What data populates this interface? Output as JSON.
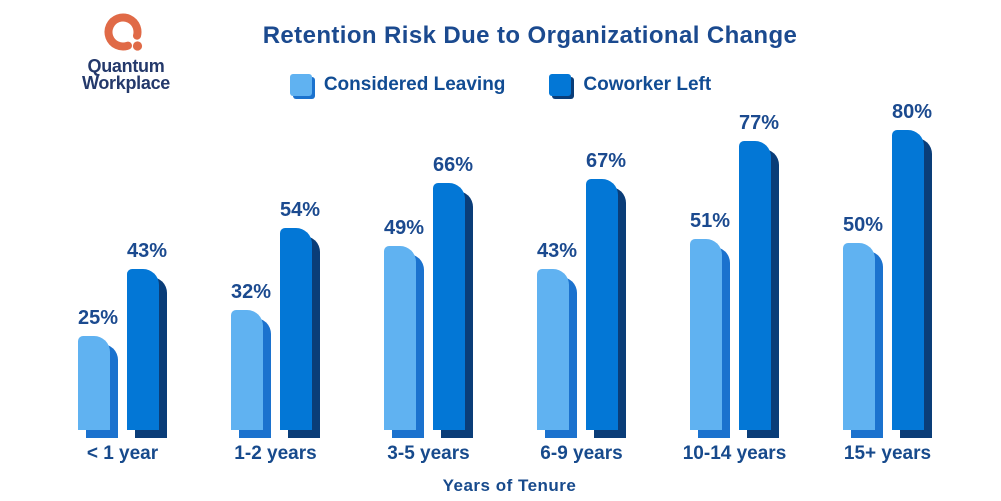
{
  "brand": {
    "line1": "Quantum",
    "line2": "Workplace",
    "logo_orange": "#e06a47",
    "text_navy": "#24396b"
  },
  "colors": {
    "heading_navy": "#1b4a8f",
    "label_navy": "#174a8c",
    "legend_navy": "#114c93"
  },
  "chart_data": {
    "type": "bar",
    "title": "Retention Risk Due to Organizational Change",
    "xlabel": "Years of Tenure",
    "ylabel": "",
    "categories": [
      "< 1 year",
      "1-2 years",
      "3-5 years",
      "6-9 years",
      "10-14 years",
      "15+ years"
    ],
    "series": [
      {
        "name": "Considered Leaving",
        "color": "#60b2f1",
        "edge_color": "#1b72ce",
        "values": [
          25,
          32,
          49,
          43,
          51,
          50
        ]
      },
      {
        "name": "Coworker Left",
        "color": "#0377d6",
        "edge_color": "#0a3d78",
        "values": [
          43,
          54,
          66,
          67,
          77,
          80
        ]
      }
    ],
    "value_suffix": "%",
    "ylim": [
      0,
      100
    ],
    "grid": false,
    "axes_shown": false,
    "legend_position": "top-center"
  }
}
